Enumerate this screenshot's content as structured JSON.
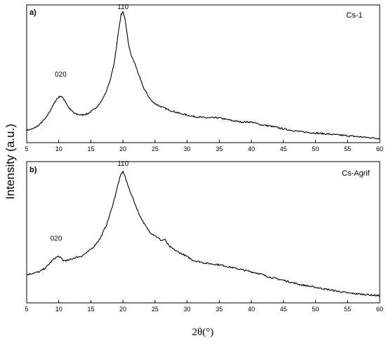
{
  "chart_data": [
    {
      "type": "line",
      "panel_label": "a)",
      "sample_label": "Cs-1",
      "xlim": [
        5,
        60
      ],
      "xticks": [
        5,
        10,
        15,
        20,
        25,
        30,
        35,
        40,
        45,
        50,
        55,
        60
      ],
      "peak_labels": [
        {
          "text": "020",
          "x": 10.3,
          "y": 0.46
        },
        {
          "text": "110",
          "x": 20.0,
          "y": 0.95
        }
      ],
      "series": [
        {
          "x": [
            5,
            6,
            7,
            8,
            9,
            9.7,
            10.3,
            10.9,
            11.6,
            12.5,
            13.5,
            14.5,
            15.5,
            16.5,
            17.3,
            18.0,
            18.6,
            19.0,
            19.4,
            19.7,
            20.0,
            20.3,
            20.6,
            21.0,
            21.4,
            21.8,
            22.2,
            22.7,
            23.2,
            23.8,
            24.5,
            25.5,
            27,
            29,
            31,
            33,
            35,
            36,
            37,
            38.5,
            40,
            41.5,
            43,
            45,
            47.5,
            50,
            52.5,
            55,
            57.5,
            60
          ],
          "y": [
            0.09,
            0.1,
            0.13,
            0.18,
            0.26,
            0.32,
            0.34,
            0.31,
            0.25,
            0.21,
            0.2,
            0.21,
            0.24,
            0.29,
            0.36,
            0.45,
            0.57,
            0.7,
            0.84,
            0.93,
            0.95,
            0.9,
            0.8,
            0.68,
            0.62,
            0.58,
            0.53,
            0.46,
            0.4,
            0.35,
            0.3,
            0.27,
            0.24,
            0.21,
            0.19,
            0.18,
            0.18,
            0.17,
            0.16,
            0.15,
            0.15,
            0.13,
            0.12,
            0.1,
            0.08,
            0.07,
            0.06,
            0.05,
            0.04,
            0.03
          ]
        }
      ]
    },
    {
      "type": "line",
      "panel_label": "b)",
      "sample_label": "Cs-Agrif",
      "xlim": [
        5,
        60
      ],
      "xticks": [
        5,
        10,
        15,
        20,
        25,
        30,
        35,
        40,
        45,
        50,
        55,
        60
      ],
      "peak_labels": [
        {
          "text": "020",
          "x": 9.6,
          "y": 0.42
        },
        {
          "text": "110",
          "x": 20.0,
          "y": 0.95
        }
      ],
      "series": [
        {
          "x": [
            5,
            6,
            7,
            8,
            9,
            9.5,
            10.0,
            10.7,
            11.5,
            12.5,
            13.5,
            14.5,
            15.5,
            16.5,
            17.5,
            18.2,
            18.8,
            19.3,
            19.7,
            20.0,
            20.3,
            20.7,
            21.2,
            21.8,
            22.5,
            23.3,
            24.2,
            25.2,
            26.0,
            26.5,
            27.2,
            28.2,
            29.5,
            31,
            33,
            35,
            37,
            39,
            41,
            43,
            45,
            47.5,
            50,
            52.5,
            55,
            57.5,
            60
          ],
          "y": [
            0.2,
            0.21,
            0.22,
            0.25,
            0.3,
            0.32,
            0.33,
            0.3,
            0.3,
            0.32,
            0.33,
            0.36,
            0.4,
            0.46,
            0.56,
            0.66,
            0.76,
            0.85,
            0.91,
            0.93,
            0.9,
            0.84,
            0.78,
            0.71,
            0.63,
            0.56,
            0.5,
            0.47,
            0.44,
            0.45,
            0.4,
            0.37,
            0.34,
            0.3,
            0.28,
            0.27,
            0.25,
            0.23,
            0.21,
            0.18,
            0.16,
            0.13,
            0.11,
            0.09,
            0.07,
            0.06,
            0.05
          ]
        }
      ]
    }
  ],
  "ylabel": "Intensity (a.u.)",
  "xlabel_math": "2θ(°)"
}
